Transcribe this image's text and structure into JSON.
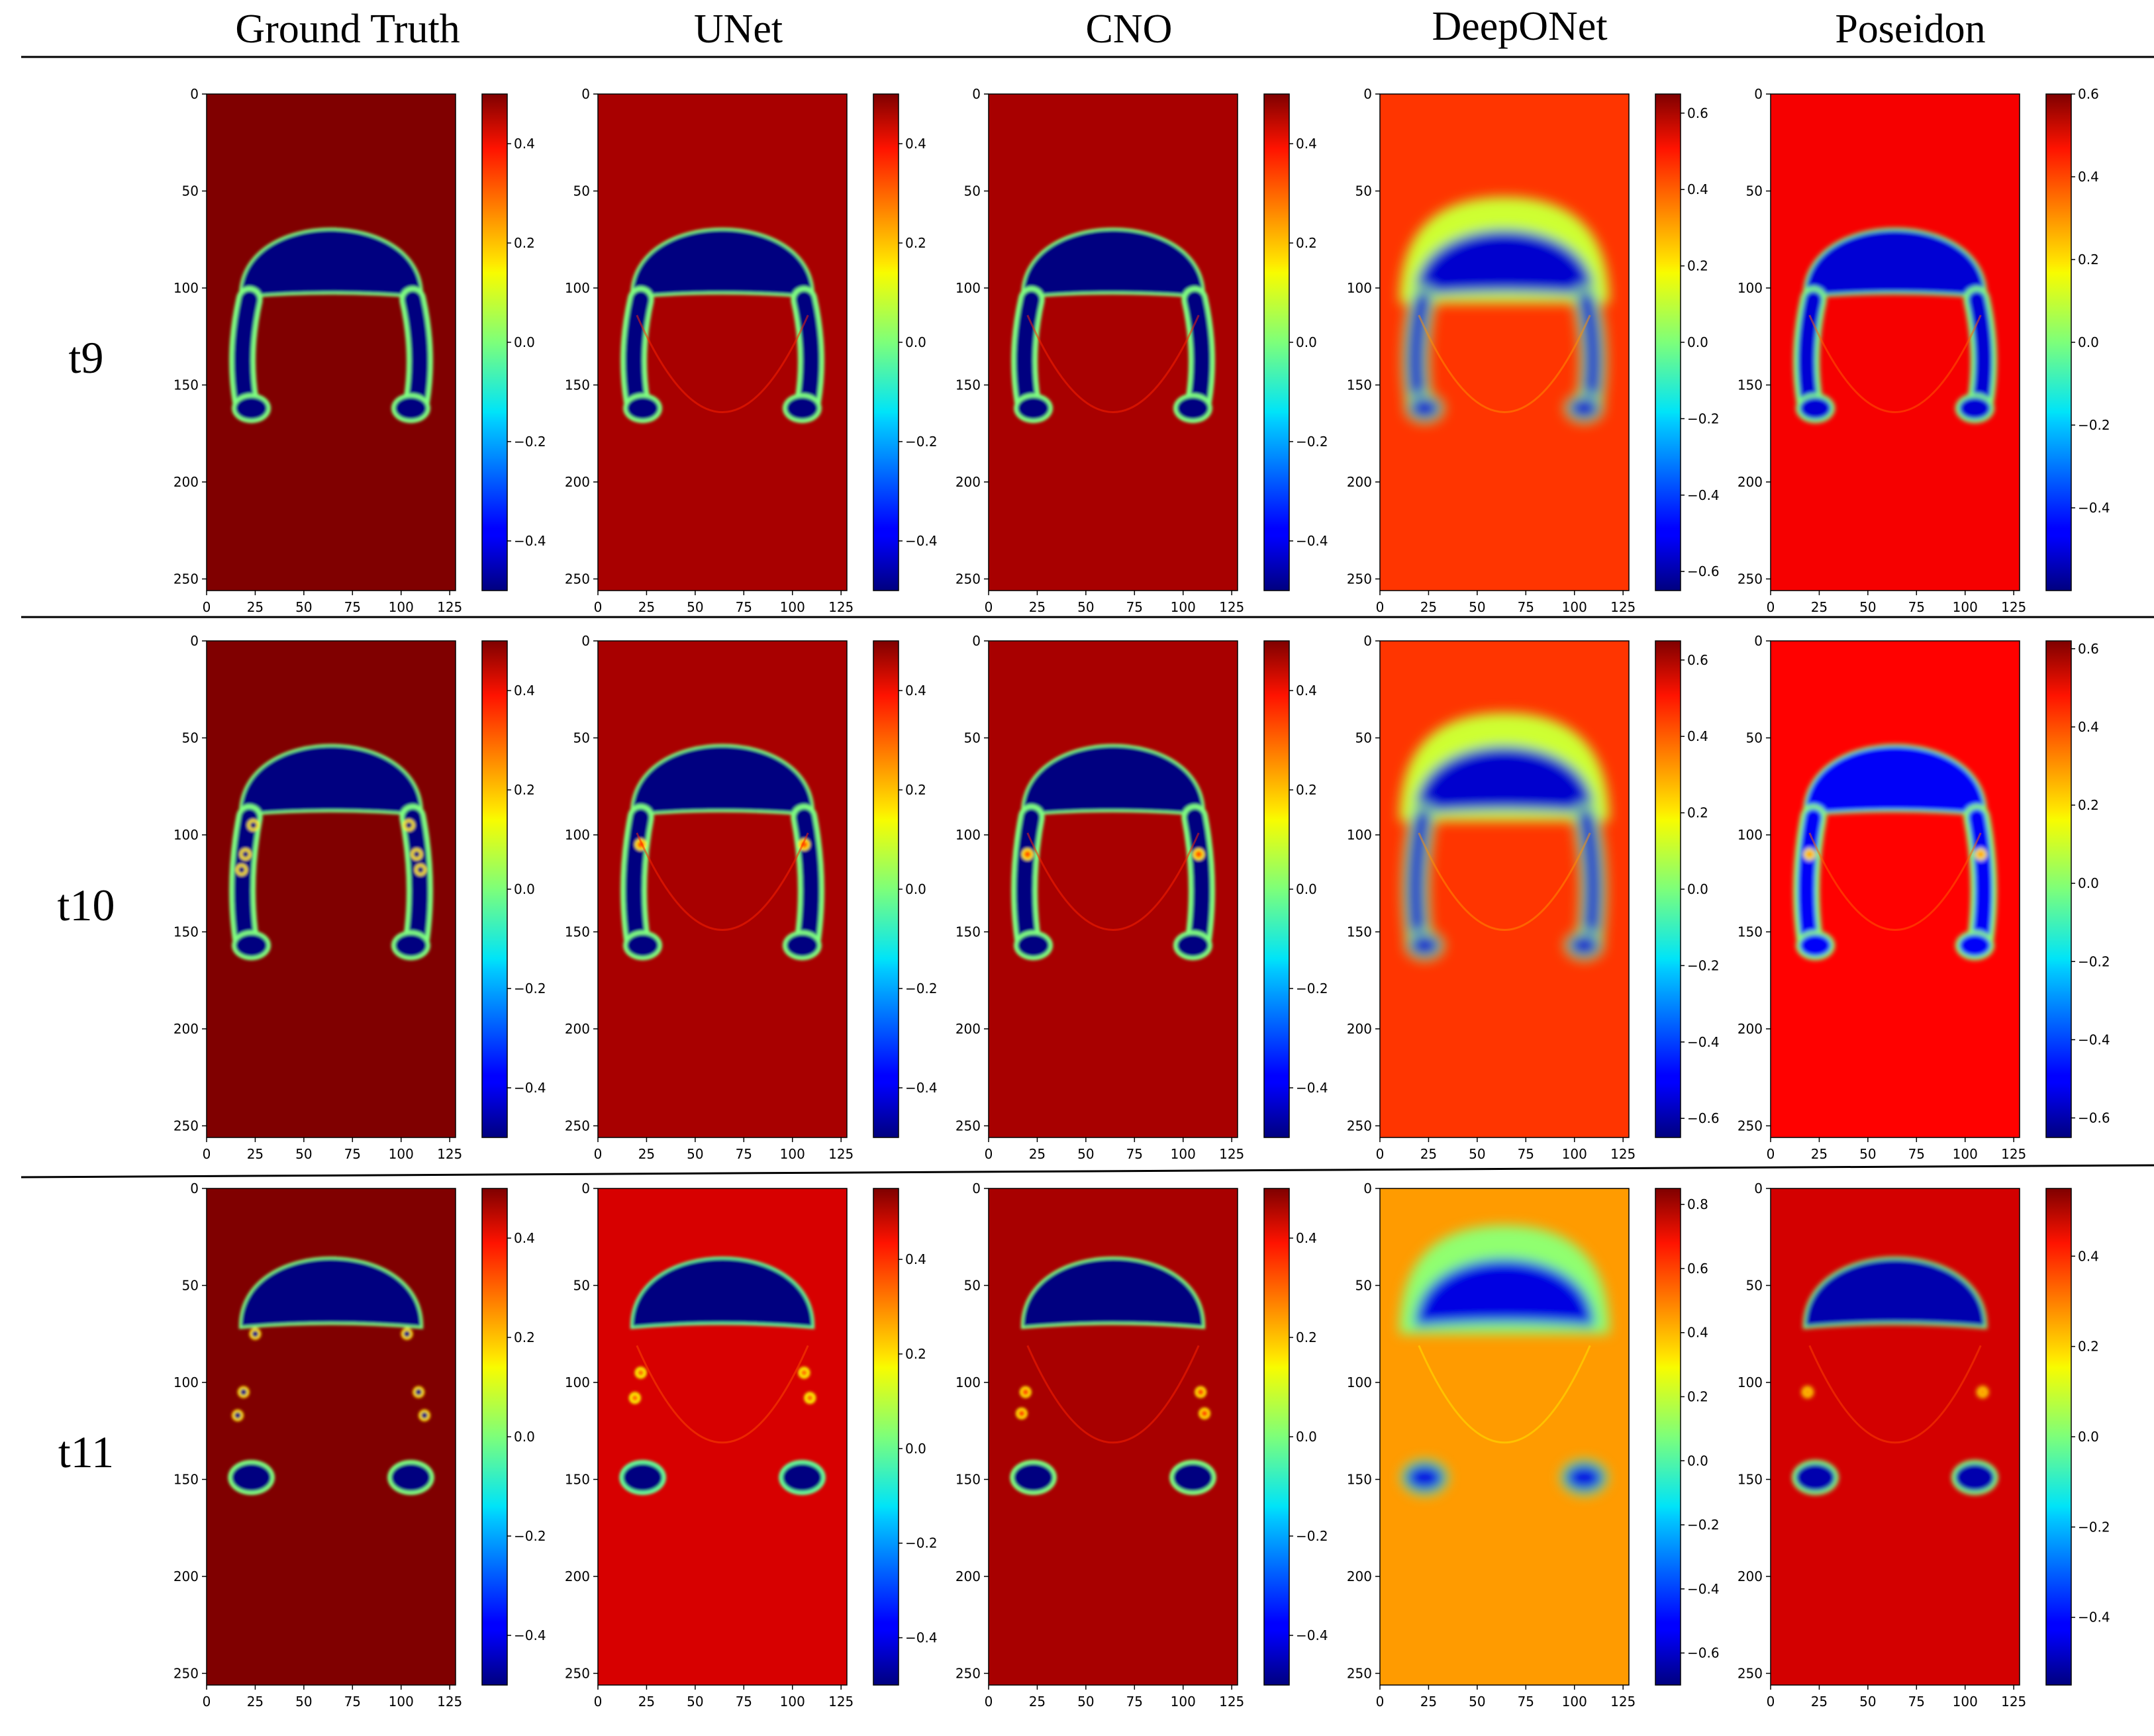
{
  "column_titles": [
    "Ground Truth",
    "UNet",
    "CNO",
    "DeepONet",
    "Poseidon"
  ],
  "row_labels": [
    "t9",
    "t10",
    "t11"
  ],
  "chart_data": {
    "type": "heatmap",
    "colormap": "jet",
    "x_ticks": [
      "0",
      "25",
      "50",
      "75",
      "100",
      "125"
    ],
    "y_ticks": [
      "0",
      "50",
      "100",
      "150",
      "200",
      "250"
    ],
    "xlim": [
      0,
      128
    ],
    "ylim": [
      256,
      0
    ],
    "panels": [
      {
        "row": "t9",
        "model": "Ground Truth",
        "vmin": -0.5,
        "vmax": 0.5,
        "cbar_ticks": [
          "0.4",
          "0.2",
          "0.0",
          "−0.2",
          "−0.4"
        ],
        "cap_top": 67,
        "cap_h": 37,
        "cap_rx": 46,
        "arm_len": 58,
        "lobe_r": 8,
        "drops": [],
        "style": "gt"
      },
      {
        "row": "t9",
        "model": "UNet",
        "vmin": -0.5,
        "vmax": 0.5,
        "cbar_ticks": [
          "0.4",
          "0.2",
          "0.0",
          "−0.2",
          "−0.4"
        ],
        "cap_top": 67,
        "cap_h": 37,
        "cap_rx": 46,
        "arm_len": 58,
        "lobe_r": 8,
        "drops": [],
        "style": "sharp"
      },
      {
        "row": "t9",
        "model": "CNO",
        "vmin": -0.5,
        "vmax": 0.5,
        "cbar_ticks": [
          "0.4",
          "0.2",
          "0.0",
          "−0.2",
          "−0.4"
        ],
        "cap_top": 67,
        "cap_h": 37,
        "cap_rx": 46,
        "arm_len": 58,
        "lobe_r": 8,
        "drops": [],
        "style": "sharp"
      },
      {
        "row": "t9",
        "model": "DeepONet",
        "vmin": -0.65,
        "vmax": 0.65,
        "cbar_ticks": [
          "0.6",
          "0.4",
          "0.2",
          "0.0",
          "−0.2",
          "−0.4",
          "−0.6"
        ],
        "cap_top": 67,
        "cap_h": 37,
        "cap_rx": 46,
        "arm_len": 58,
        "lobe_r": 8,
        "drops": [],
        "style": "diffuse"
      },
      {
        "row": "t9",
        "model": "Poseidon",
        "vmin": -0.6,
        "vmax": 0.6,
        "cbar_ticks": [
          "0.6",
          "0.4",
          "0.2",
          "0.0",
          "−0.2",
          "−0.4"
        ],
        "cap_top": 67,
        "cap_h": 37,
        "cap_rx": 46,
        "arm_len": 58,
        "lobe_r": 8,
        "drops": [],
        "style": "noisy"
      },
      {
        "row": "t10",
        "model": "Ground Truth",
        "vmin": -0.5,
        "vmax": 0.5,
        "cbar_ticks": [
          "0.4",
          "0.2",
          "0.0",
          "−0.2",
          "−0.4"
        ],
        "cap_top": 51,
        "cap_h": 38,
        "cap_rx": 46,
        "arm_len": 68,
        "lobe_r": 8,
        "drops": [
          [
            24,
            95
          ],
          [
            20,
            110
          ],
          [
            18,
            118
          ],
          [
            104,
            95
          ],
          [
            108,
            110
          ],
          [
            110,
            118
          ]
        ],
        "style": "gt"
      },
      {
        "row": "t10",
        "model": "UNet",
        "vmin": -0.5,
        "vmax": 0.5,
        "cbar_ticks": [
          "0.4",
          "0.2",
          "0.0",
          "−0.2",
          "−0.4"
        ],
        "cap_top": 51,
        "cap_h": 38,
        "cap_rx": 46,
        "arm_len": 68,
        "lobe_r": 8,
        "drops": [
          [
            22,
            105
          ],
          [
            106,
            105
          ]
        ],
        "style": "sharp"
      },
      {
        "row": "t10",
        "model": "CNO",
        "vmin": -0.5,
        "vmax": 0.5,
        "cbar_ticks": [
          "0.4",
          "0.2",
          "0.0",
          "−0.2",
          "−0.4"
        ],
        "cap_top": 51,
        "cap_h": 38,
        "cap_rx": 46,
        "arm_len": 68,
        "lobe_r": 8,
        "drops": [
          [
            20,
            110
          ],
          [
            108,
            110
          ]
        ],
        "style": "sharp"
      },
      {
        "row": "t10",
        "model": "DeepONet",
        "vmin": -0.65,
        "vmax": 0.65,
        "cbar_ticks": [
          "0.6",
          "0.4",
          "0.2",
          "0.0",
          "−0.2",
          "−0.4",
          "−0.6"
        ],
        "cap_top": 51,
        "cap_h": 38,
        "cap_rx": 46,
        "arm_len": 68,
        "lobe_r": 8,
        "drops": [],
        "style": "diffuse"
      },
      {
        "row": "t10",
        "model": "Poseidon",
        "vmin": -0.65,
        "vmax": 0.62,
        "cbar_ticks": [
          "0.6",
          "0.4",
          "0.2",
          "0.0",
          "−0.2",
          "−0.4",
          "−0.6"
        ],
        "cap_top": 51,
        "cap_h": 38,
        "cap_rx": 46,
        "arm_len": 68,
        "lobe_r": 8,
        "drops": [
          [
            20,
            110
          ],
          [
            108,
            110
          ]
        ],
        "style": "noisy"
      },
      {
        "row": "t11",
        "model": "Ground Truth",
        "vmin": -0.5,
        "vmax": 0.5,
        "cbar_ticks": [
          "0.4",
          "0.2",
          "0.0",
          "−0.2",
          "−0.4"
        ],
        "cap_top": 33,
        "cap_h": 38,
        "cap_rx": 46,
        "arm_len": 0,
        "lobe_r": 10,
        "drops": [
          [
            25,
            75
          ],
          [
            19,
            105
          ],
          [
            16,
            117
          ],
          [
            103,
            75
          ],
          [
            109,
            105
          ],
          [
            112,
            117
          ]
        ],
        "style": "gt"
      },
      {
        "row": "t11",
        "model": "UNet",
        "vmin": -0.5,
        "vmax": 0.55,
        "cbar_ticks": [
          "0.4",
          "0.2",
          "0.0",
          "−0.2",
          "−0.4"
        ],
        "cap_top": 33,
        "cap_h": 38,
        "cap_rx": 46,
        "arm_len": 0,
        "lobe_r": 10,
        "drops": [
          [
            22,
            95
          ],
          [
            19,
            108
          ],
          [
            106,
            95
          ],
          [
            109,
            108
          ]
        ],
        "style": "sharp"
      },
      {
        "row": "t11",
        "model": "CNO",
        "vmin": -0.5,
        "vmax": 0.5,
        "cbar_ticks": [
          "0.4",
          "0.2",
          "0.0",
          "−0.2",
          "−0.4"
        ],
        "cap_top": 33,
        "cap_h": 38,
        "cap_rx": 46,
        "arm_len": 0,
        "lobe_r": 10,
        "drops": [
          [
            19,
            105
          ],
          [
            17,
            116
          ],
          [
            109,
            105
          ],
          [
            111,
            116
          ]
        ],
        "style": "sharp"
      },
      {
        "row": "t11",
        "model": "DeepONet",
        "vmin": -0.7,
        "vmax": 0.85,
        "cbar_ticks": [
          "0.8",
          "0.6",
          "0.4",
          "0.2",
          "0.0",
          "−0.2",
          "−0.4",
          "−0.6"
        ],
        "cap_top": 33,
        "cap_h": 38,
        "cap_rx": 46,
        "arm_len": 0,
        "lobe_r": 10,
        "drops": [],
        "style": "diffuse"
      },
      {
        "row": "t11",
        "model": "Poseidon",
        "vmin": -0.55,
        "vmax": 0.55,
        "cbar_ticks": [
          "0.4",
          "0.2",
          "0.0",
          "−0.2",
          "−0.4"
        ],
        "cap_top": 33,
        "cap_h": 38,
        "cap_rx": 46,
        "arm_len": 0,
        "lobe_r": 10,
        "drops": [
          [
            19,
            105
          ],
          [
            109,
            105
          ]
        ],
        "style": "noisy"
      }
    ]
  }
}
